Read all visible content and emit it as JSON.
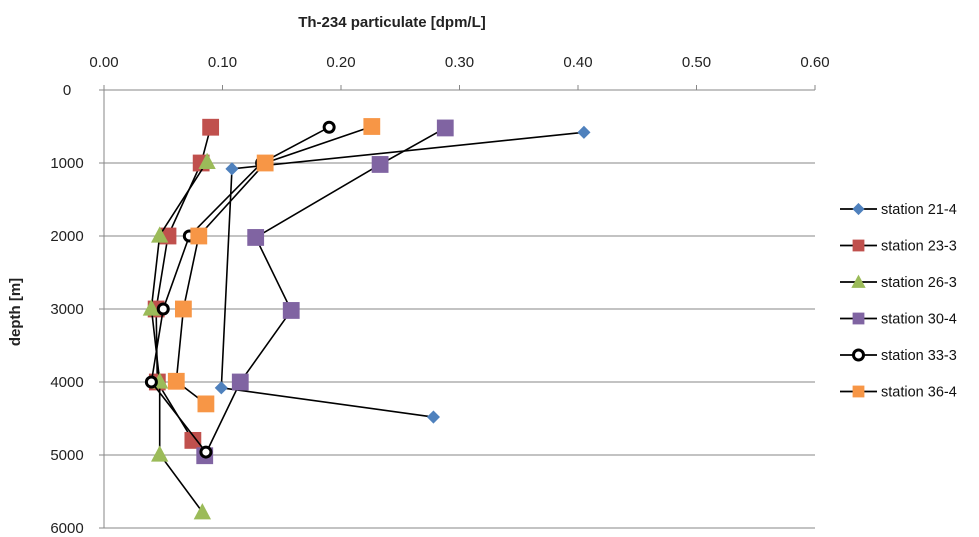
{
  "chart_data": {
    "type": "line",
    "xlabel": "Th-234 particulate [dpm/L]",
    "ylabel": "depth [m]",
    "xlim": [
      0,
      0.6
    ],
    "ylim": [
      0,
      6000
    ],
    "y_reversed": true,
    "x_axis_position": "top",
    "grid": "horizontal",
    "legend_position": "right",
    "x_ticks": [
      "0.00",
      "0.10",
      "0.20",
      "0.30",
      "0.40",
      "0.50",
      "0.60"
    ],
    "y_ticks": [
      "0",
      "1000",
      "2000",
      "3000",
      "4000",
      "5000",
      "6000"
    ],
    "series": [
      {
        "name": "station 21-4",
        "color": "#4f81bd",
        "marker": "diamond",
        "x": [
          0.405,
          0.108,
          0.099,
          0.278
        ],
        "y": [
          580,
          1080,
          4080,
          4480
        ]
      },
      {
        "name": "station 23-3",
        "color": "#c0504d",
        "marker": "square",
        "x": [
          0.09,
          0.082,
          0.054,
          0.044,
          0.045,
          0.075
        ],
        "y": [
          510,
          1000,
          2000,
          3000,
          4000,
          4800
        ]
      },
      {
        "name": "station 26-3",
        "color": "#9bbb59",
        "marker": "triangle",
        "x": [
          0.087,
          0.047,
          0.04,
          0.047,
          0.047,
          0.083
        ],
        "y": [
          980,
          1990,
          2990,
          3990,
          4990,
          5780
        ]
      },
      {
        "name": "station 30-4",
        "color": "#8064a2",
        "marker": "square",
        "x": [
          0.288,
          0.233,
          0.128,
          0.158,
          0.115,
          0.085
        ],
        "y": [
          520,
          1020,
          2020,
          3020,
          4000,
          5010
        ]
      },
      {
        "name": "station 33-3",
        "color": "#000000",
        "marker": "circle",
        "x": [
          0.19,
          0.133,
          0.072,
          0.05,
          0.04,
          0.086
        ],
        "y": [
          510,
          1000,
          2000,
          3000,
          4000,
          4960
        ]
      },
      {
        "name": "station 36-4",
        "color": "#f79646",
        "marker": "square",
        "x": [
          0.226,
          0.136,
          0.08,
          0.067,
          0.061,
          0.086
        ],
        "y": [
          500,
          1000,
          2000,
          3000,
          3990,
          4300
        ]
      }
    ]
  }
}
